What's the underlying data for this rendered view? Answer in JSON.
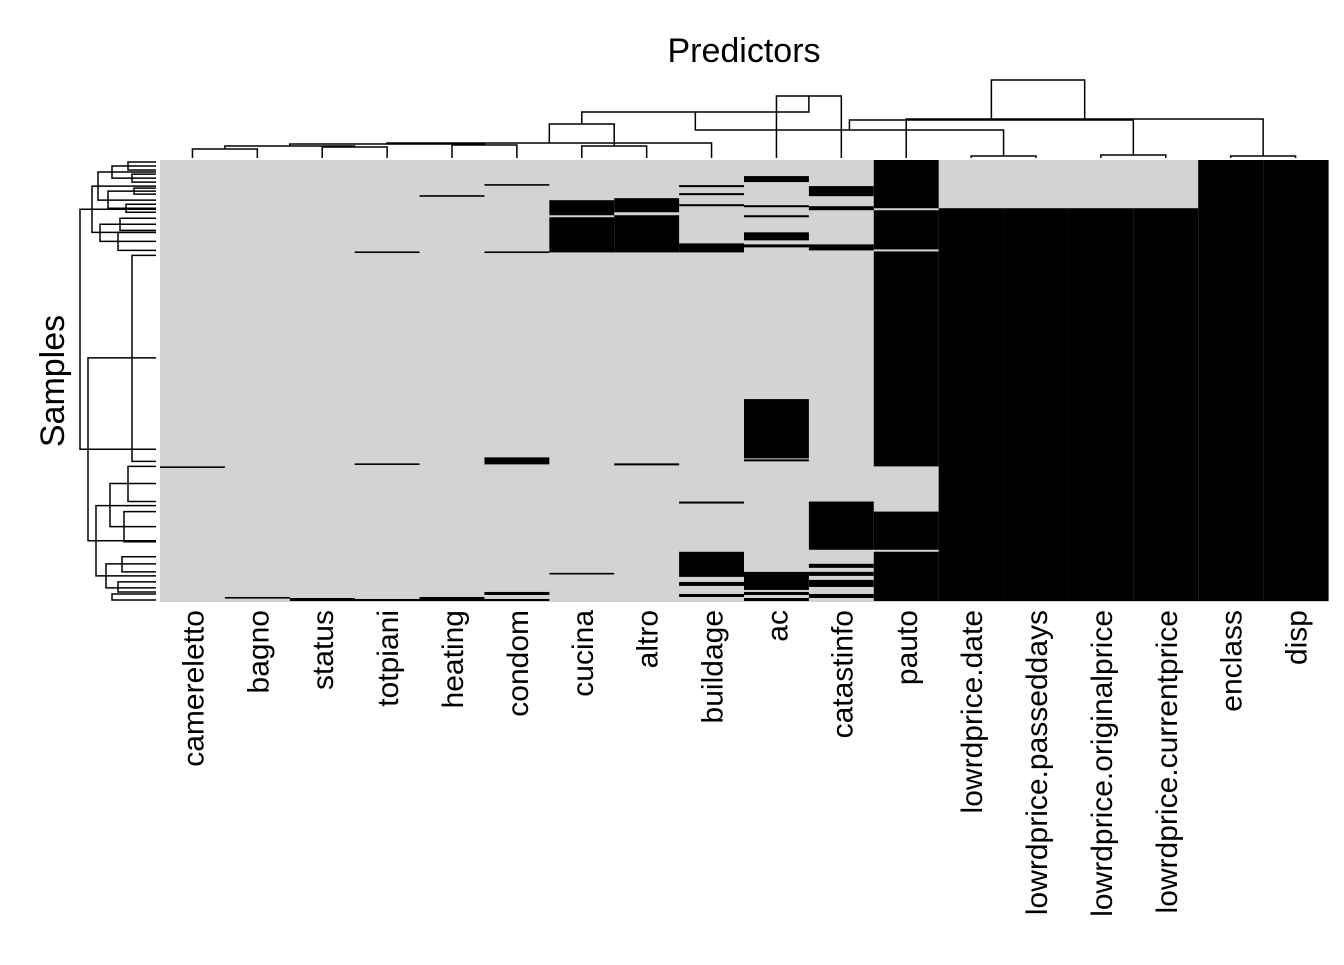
{
  "chart_data": {
    "type": "heatmap",
    "title": "Predictors",
    "xlabel": "",
    "ylabel": "Samples",
    "colors": {
      "present": "#d3d3d3",
      "missing": "#000000"
    },
    "value_encoding": {
      "0": "present",
      "1": "missing"
    },
    "row_dendrogram": true,
    "column_dendrogram": true,
    "columns": [
      "camereletto",
      "bagno",
      "status",
      "totpiani",
      "heating",
      "condom",
      "cucina",
      "altro",
      "buildage",
      "ac",
      "catastinfo",
      "pauto",
      "lowrdprice.date",
      "lowrdprice.passeddays",
      "lowrdprice.originalprice",
      "lowrdprice.currentprice",
      "enclass",
      "disp"
    ],
    "n_rows": 440,
    "missing_row_ranges": {
      "camereletto": [
        [
          305,
          306
        ]
      ],
      "bagno": [
        [
          435,
          436
        ]
      ],
      "status": [
        [
          436,
          439
        ]
      ],
      "totpiani": [
        [
          91,
          92
        ],
        [
          302,
          303
        ],
        [
          437,
          439
        ]
      ],
      "heating": [
        [
          35,
          36
        ],
        [
          435,
          439
        ]
      ],
      "condom": [
        [
          24,
          25
        ],
        [
          91,
          92
        ],
        [
          296,
          303
        ],
        [
          430,
          433
        ],
        [
          437,
          439
        ]
      ],
      "cucina": [
        [
          40,
          55
        ],
        [
          57,
          92
        ],
        [
          411,
          412
        ]
      ],
      "altro": [
        [
          38,
          52
        ],
        [
          55,
          92
        ],
        [
          302,
          304
        ]
      ],
      "buildage": [
        [
          25,
          27
        ],
        [
          33,
          35
        ],
        [
          44,
          46
        ],
        [
          83,
          92
        ],
        [
          340,
          342
        ],
        [
          390,
          415
        ],
        [
          420,
          424
        ],
        [
          432,
          435
        ]
      ],
      "ac": [
        [
          16,
          22
        ],
        [
          45,
          47
        ],
        [
          55,
          57
        ],
        [
          72,
          80
        ],
        [
          84,
          87
        ],
        [
          238,
          297
        ],
        [
          298,
          300
        ],
        [
          410,
          428
        ],
        [
          430,
          433
        ],
        [
          436,
          439
        ]
      ],
      "catastinfo": [
        [
          26,
          36
        ],
        [
          46,
          50
        ],
        [
          84,
          90
        ],
        [
          340,
          388
        ],
        [
          402,
          406
        ],
        [
          410,
          414
        ],
        [
          418,
          425
        ],
        [
          432,
          436
        ]
      ],
      "pauto": [
        [
          0,
          48
        ],
        [
          50,
          89
        ],
        [
          91,
          305
        ],
        [
          350,
          388
        ],
        [
          390,
          439
        ]
      ],
      "lowrdprice.date": [
        [
          48,
          439
        ]
      ],
      "lowrdprice.passeddays": [
        [
          48,
          439
        ]
      ],
      "lowrdprice.originalprice": [
        [
          48,
          439
        ]
      ],
      "lowrdprice.currentprice": [
        [
          48,
          439
        ]
      ],
      "enclass": [
        [
          0,
          439
        ]
      ],
      "disp": [
        [
          0,
          439
        ]
      ]
    }
  }
}
